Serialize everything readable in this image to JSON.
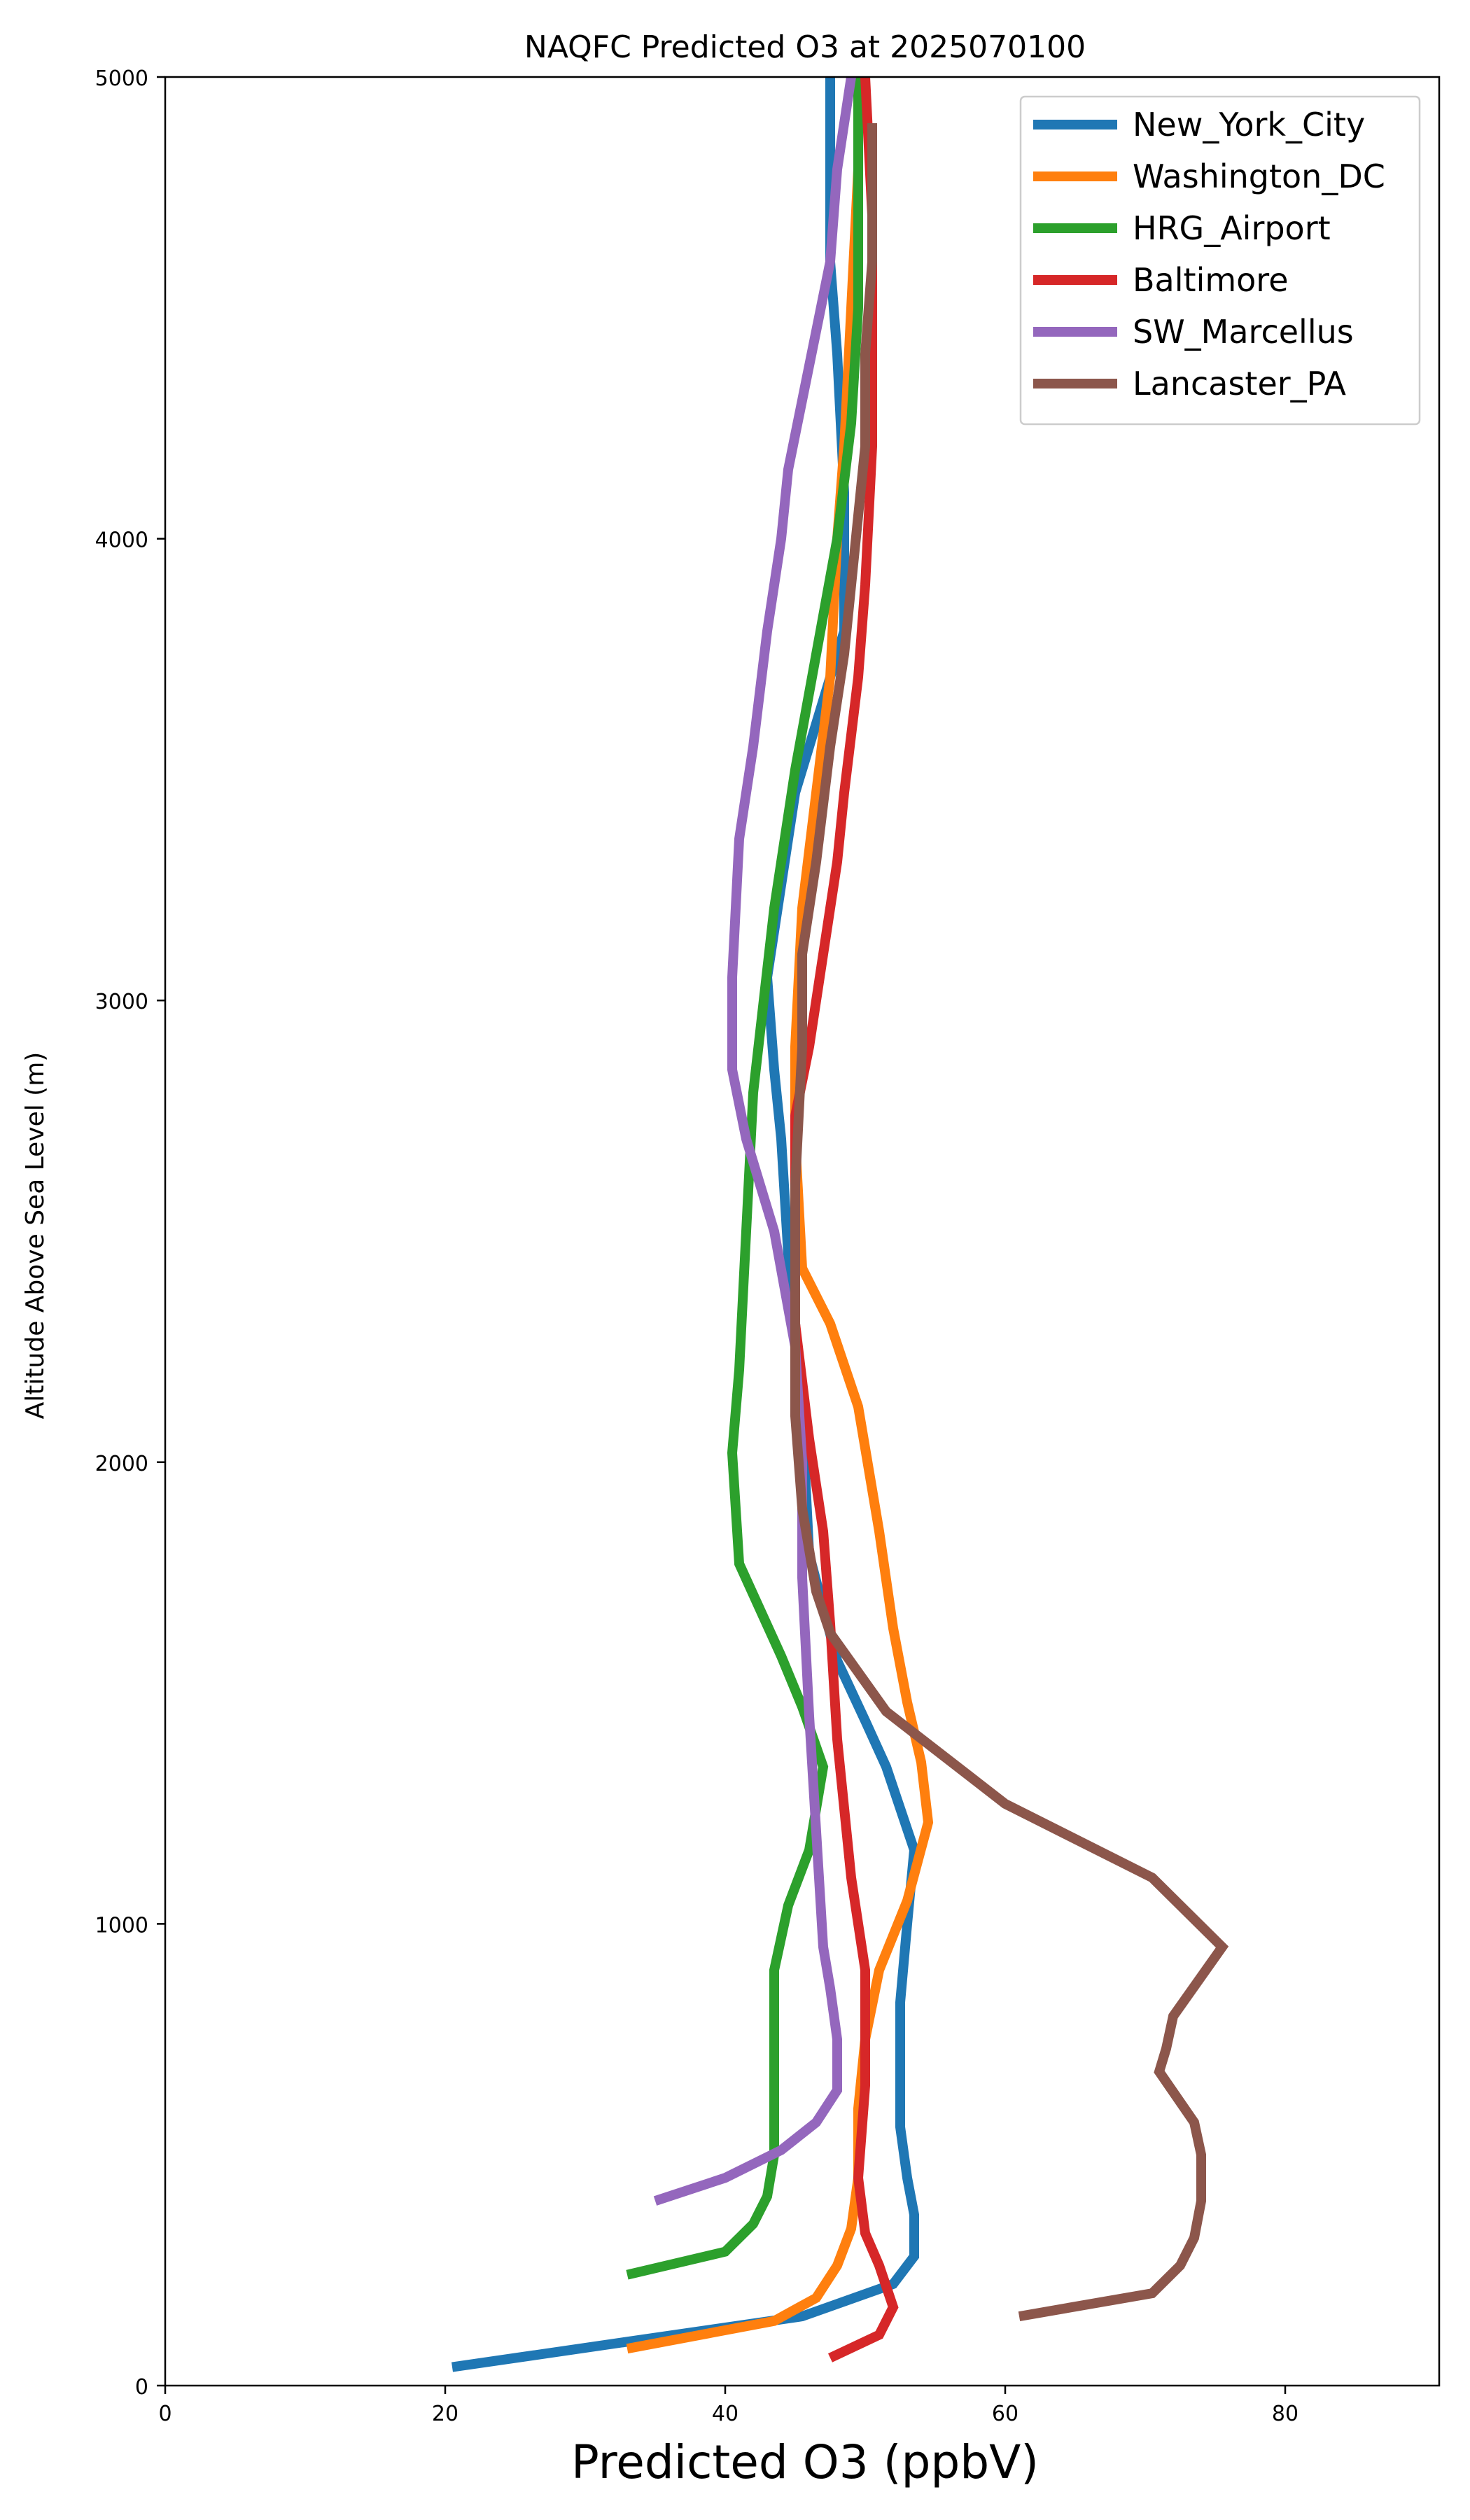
{
  "chart_data": {
    "type": "line",
    "title": "NAQFC Predicted O3 at 2025070100",
    "xlabel": "Predicted O3 (ppbV)",
    "ylabel": "Altitude Above Sea Level (m)",
    "xlim": [
      0,
      91
    ],
    "ylim": [
      0,
      5000
    ],
    "xticks": [
      "0",
      "20",
      "40",
      "60",
      "80"
    ],
    "yticks": [
      "0",
      "1000",
      "2000",
      "3000",
      "4000",
      "5000"
    ],
    "grid": false,
    "legend_position": "top-right",
    "series": [
      {
        "name": "New_York_City",
        "color": "#1f77b4",
        "points": [
          [
            20.5,
            40
          ],
          [
            45.5,
            150
          ],
          [
            52,
            220
          ],
          [
            53.5,
            280
          ],
          [
            53.5,
            370
          ],
          [
            53,
            450
          ],
          [
            52.5,
            560
          ],
          [
            52.5,
            700
          ],
          [
            52.5,
            830
          ],
          [
            53,
            1000
          ],
          [
            53.5,
            1160
          ],
          [
            51.5,
            1340
          ],
          [
            50,
            1440
          ],
          [
            48,
            1570
          ],
          [
            46,
            1800
          ],
          [
            45.5,
            2100
          ],
          [
            45,
            2300
          ],
          [
            44.5,
            2450
          ],
          [
            44,
            2700
          ],
          [
            43.5,
            2850
          ],
          [
            43,
            3050
          ],
          [
            44,
            3250
          ],
          [
            45,
            3450
          ],
          [
            47,
            3650
          ],
          [
            48.5,
            3800
          ],
          [
            48.5,
            4100
          ],
          [
            48,
            4400
          ],
          [
            47.5,
            4600
          ],
          [
            47.5,
            4800
          ],
          [
            47.5,
            5000
          ]
        ]
      },
      {
        "name": "Washington_DC",
        "color": "#ff7f0e",
        "points": [
          [
            33,
            80
          ],
          [
            43.5,
            140
          ],
          [
            46.5,
            190
          ],
          [
            48,
            260
          ],
          [
            49,
            340
          ],
          [
            49.5,
            450
          ],
          [
            49.5,
            600
          ],
          [
            50,
            750
          ],
          [
            51,
            900
          ],
          [
            53,
            1050
          ],
          [
            54.5,
            1220
          ],
          [
            54,
            1350
          ],
          [
            53,
            1480
          ],
          [
            52,
            1640
          ],
          [
            51,
            1850
          ],
          [
            49.5,
            2120
          ],
          [
            47.5,
            2300
          ],
          [
            45.5,
            2420
          ],
          [
            45,
            2700
          ],
          [
            45,
            2900
          ],
          [
            45.5,
            3200
          ],
          [
            46.5,
            3450
          ],
          [
            47.5,
            3700
          ],
          [
            48,
            4000
          ],
          [
            48.5,
            4200
          ],
          [
            49,
            4500
          ],
          [
            49.5,
            4800
          ],
          [
            49.5,
            5000
          ]
        ]
      },
      {
        "name": "HRG_Airport",
        "color": "#2ca02c",
        "points": [
          [
            33,
            240
          ],
          [
            40,
            290
          ],
          [
            42,
            350
          ],
          [
            43,
            410
          ],
          [
            43.5,
            500
          ],
          [
            43.5,
            600
          ],
          [
            43.5,
            750
          ],
          [
            43.5,
            900
          ],
          [
            44.5,
            1040
          ],
          [
            46,
            1160
          ],
          [
            47,
            1340
          ],
          [
            45.5,
            1470
          ],
          [
            44,
            1580
          ],
          [
            41,
            1780
          ],
          [
            40.5,
            2020
          ],
          [
            41,
            2200
          ],
          [
            41.5,
            2500
          ],
          [
            42,
            2800
          ],
          [
            43.5,
            3200
          ],
          [
            45,
            3500
          ],
          [
            46.5,
            3750
          ],
          [
            48,
            4000
          ],
          [
            49,
            4250
          ],
          [
            49.5,
            4500
          ],
          [
            49.5,
            4800
          ],
          [
            49.5,
            5000
          ]
        ]
      },
      {
        "name": "Baltimore",
        "color": "#d62728",
        "points": [
          [
            47.5,
            60
          ],
          [
            51,
            110
          ],
          [
            52,
            170
          ],
          [
            51,
            260
          ],
          [
            50,
            330
          ],
          [
            49.5,
            450
          ],
          [
            50,
            650
          ],
          [
            50,
            900
          ],
          [
            49,
            1100
          ],
          [
            48,
            1400
          ],
          [
            47.5,
            1650
          ],
          [
            47,
            1850
          ],
          [
            46,
            2050
          ],
          [
            45,
            2300
          ],
          [
            45,
            2500
          ],
          [
            45,
            2750
          ],
          [
            46,
            2900
          ],
          [
            47,
            3100
          ],
          [
            48,
            3300
          ],
          [
            48.5,
            3450
          ],
          [
            49.5,
            3700
          ],
          [
            50,
            3900
          ],
          [
            50.5,
            4200
          ],
          [
            50.5,
            4450
          ],
          [
            50.5,
            4700
          ],
          [
            50,
            5000
          ]
        ]
      },
      {
        "name": "SW_Marcellus",
        "color": "#9467bd",
        "points": [
          [
            35,
            400
          ],
          [
            40,
            450
          ],
          [
            44,
            510
          ],
          [
            46.5,
            570
          ],
          [
            48,
            640
          ],
          [
            48,
            750
          ],
          [
            47.5,
            860
          ],
          [
            47,
            950
          ],
          [
            46.5,
            1200
          ],
          [
            46,
            1450
          ],
          [
            45.5,
            1750
          ],
          [
            45.5,
            2000
          ],
          [
            45,
            2250
          ],
          [
            43.5,
            2500
          ],
          [
            41.5,
            2700
          ],
          [
            40.5,
            2850
          ],
          [
            40.5,
            3050
          ],
          [
            41,
            3350
          ],
          [
            42,
            3550
          ],
          [
            43,
            3800
          ],
          [
            44,
            4000
          ],
          [
            44.5,
            4150
          ],
          [
            45.5,
            4300
          ],
          [
            46.5,
            4450
          ],
          [
            47.5,
            4600
          ],
          [
            48,
            4800
          ],
          [
            49,
            5000
          ]
        ]
      },
      {
        "name": "Lancaster_PA",
        "color": "#8c564b",
        "points": [
          [
            61,
            150
          ],
          [
            70.5,
            200
          ],
          [
            72.5,
            260
          ],
          [
            73.5,
            320
          ],
          [
            74,
            400
          ],
          [
            74,
            500
          ],
          [
            73.5,
            570
          ],
          [
            71,
            680
          ],
          [
            71.5,
            730
          ],
          [
            72,
            800
          ],
          [
            75.5,
            950
          ],
          [
            70.5,
            1100
          ],
          [
            60,
            1260
          ],
          [
            51.5,
            1460
          ],
          [
            47.5,
            1630
          ],
          [
            46.5,
            1720
          ],
          [
            45.5,
            1900
          ],
          [
            45,
            2100
          ],
          [
            45,
            2300
          ],
          [
            45,
            2600
          ],
          [
            45.5,
            2900
          ],
          [
            45.5,
            3100
          ],
          [
            46.5,
            3300
          ],
          [
            47.5,
            3550
          ],
          [
            48.5,
            3750
          ],
          [
            49,
            3900
          ],
          [
            49.5,
            4050
          ],
          [
            50,
            4200
          ],
          [
            50,
            4400
          ],
          [
            50.5,
            4600
          ],
          [
            50.5,
            4900
          ]
        ]
      }
    ]
  }
}
